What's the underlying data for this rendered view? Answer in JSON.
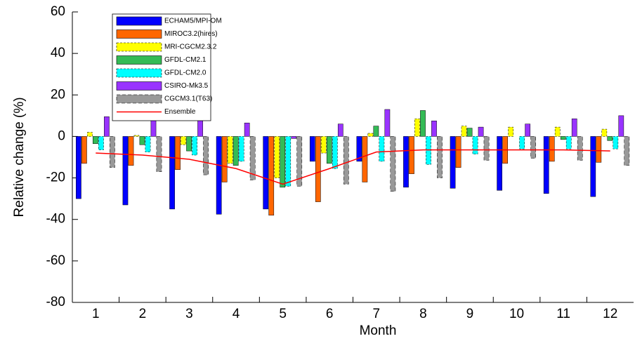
{
  "chart_data": {
    "type": "bar",
    "xlabel": "Month",
    "ylabel": "Relative change (%)",
    "categories": [
      "1",
      "2",
      "3",
      "4",
      "5",
      "6",
      "7",
      "8",
      "9",
      "10",
      "11",
      "12"
    ],
    "series": [
      {
        "name": "ECHAM5/MPI-OM",
        "color": "#0000ff",
        "values": [
          -30,
          -33,
          -35,
          -37.5,
          -35,
          -12,
          -12,
          -24.5,
          -25,
          -26,
          -27.5,
          -29
        ]
      },
      {
        "name": "MIROC3.2(hires)",
        "color": "#ff6600",
        "values": [
          -13,
          -14,
          -16,
          -22,
          -38,
          -31.5,
          -22,
          -18,
          -15,
          -13,
          -12,
          -12.5
        ]
      },
      {
        "name": "MRI-CGCM2.3.2",
        "color": "#ffff00",
        "values": [
          2,
          0.5,
          -4,
          -13,
          -20,
          -8,
          1.5,
          8.5,
          5,
          4.5,
          4.5,
          3.5
        ]
      },
      {
        "name": "GFDL-CM2.1",
        "color": "#33bb55",
        "values": [
          -3.5,
          -4,
          -7,
          -14,
          -24.5,
          -13,
          5,
          12.5,
          4,
          0,
          -1.5,
          -2
        ]
      },
      {
        "name": "GFDL-CM2.0",
        "color": "#00ffff",
        "values": [
          -6.5,
          -7.5,
          -9,
          -12,
          -24,
          -15.5,
          -12,
          -13.5,
          -8.5,
          -6,
          -6,
          -6
        ]
      },
      {
        "name": "CSIRO-Mk3.5",
        "color": "#9933ff",
        "values": [
          9.5,
          10,
          9.5,
          6.5,
          -1,
          6,
          13,
          7.5,
          4.5,
          6,
          8.5,
          10
        ]
      },
      {
        "name": "CGCM3.1(T63)",
        "color": "#999999",
        "values": [
          -15,
          -17,
          -18.5,
          -21,
          -24,
          -23,
          -26.5,
          -20,
          -11.5,
          -10.5,
          -11.5,
          -14
        ]
      },
      {
        "name": "Ensemble",
        "color": "#ff0000",
        "type": "line",
        "values": [
          -8,
          -9,
          -11,
          -15.5,
          -23,
          -15.5,
          -7.5,
          -6.5,
          -6.5,
          -6.5,
          -6.5,
          -7
        ]
      }
    ],
    "ylim": [
      -80,
      60
    ],
    "yticks": [
      -80,
      -60,
      -40,
      -20,
      0,
      20,
      40,
      60
    ],
    "legend": "upper left"
  }
}
